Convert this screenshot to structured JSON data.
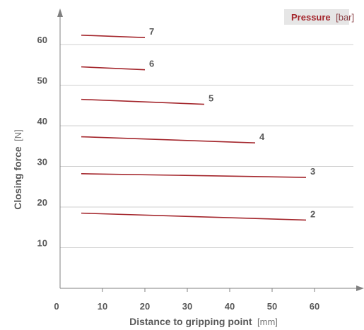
{
  "chart_data": {
    "type": "line",
    "xlabel": "Distance to gripping point",
    "xlabel_unit": "[mm]",
    "ylabel": "Closing force",
    "ylabel_unit": "[N]",
    "legend_title": "Pressure",
    "legend_unit": "[bar]",
    "legend_placement": "top-right",
    "xlim": [
      0,
      70
    ],
    "ylim": [
      0,
      70
    ],
    "x_ticks": [
      "0",
      "10",
      "20",
      "30",
      "40",
      "50",
      "60"
    ],
    "y_ticks": [
      "10",
      "20",
      "30",
      "40",
      "50",
      "60"
    ],
    "grid": "horizontal",
    "series": [
      {
        "name": "2",
        "x": [
          5,
          58
        ],
        "y": [
          18.5,
          16.8
        ]
      },
      {
        "name": "3",
        "x": [
          5,
          58
        ],
        "y": [
          28.2,
          27.3
        ]
      },
      {
        "name": "4",
        "x": [
          5,
          46
        ],
        "y": [
          37.3,
          35.8
        ]
      },
      {
        "name": "5",
        "x": [
          5,
          34
        ],
        "y": [
          46.5,
          45.3
        ]
      },
      {
        "name": "6",
        "x": [
          5,
          20
        ],
        "y": [
          54.5,
          53.8
        ]
      },
      {
        "name": "7",
        "x": [
          5,
          20
        ],
        "y": [
          62.3,
          61.7
        ]
      }
    ],
    "colors": {
      "line": "#a4262c",
      "grid": "#d0d0d0",
      "axis": "#808080",
      "text": "#595959",
      "legend_bg": "#e6e6e6"
    }
  }
}
